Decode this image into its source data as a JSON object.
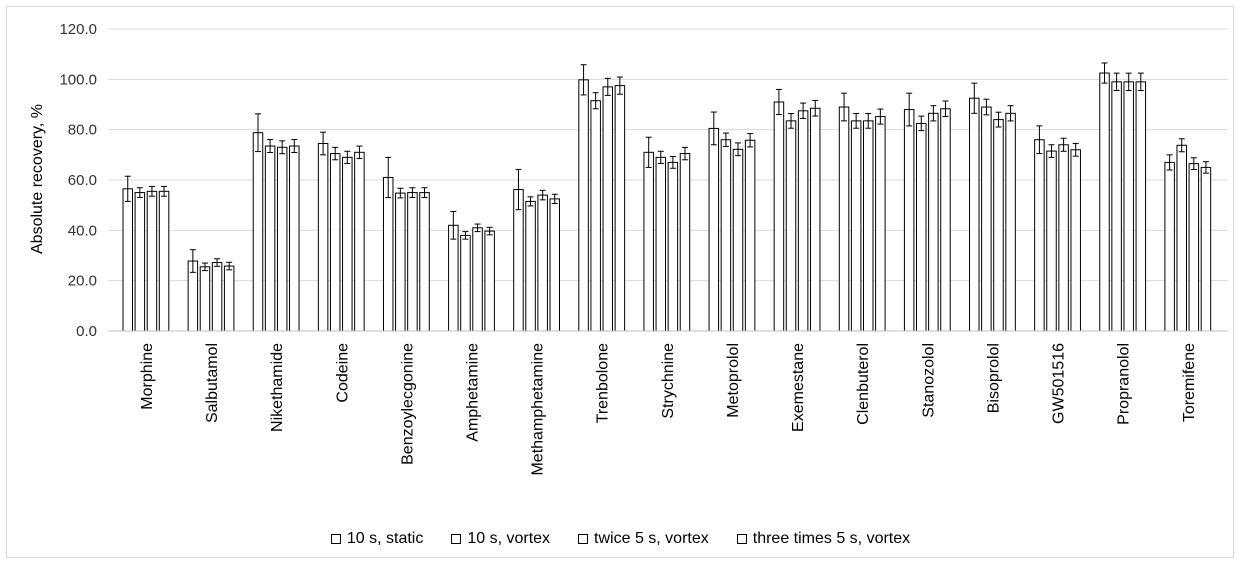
{
  "chart_data": {
    "type": "bar",
    "ylabel": "Absolute recovery, %",
    "xlabel": "",
    "ylim": [
      0,
      120
    ],
    "yticks": [
      "0.0",
      "20.0",
      "40.0",
      "60.0",
      "80.0",
      "100.0",
      "120.0"
    ],
    "grid": true,
    "legend_position": "bottom",
    "bar_fill": "#ffffff",
    "bar_stroke": "#000000",
    "grid_color": "#d9d9d9",
    "categories": [
      "Morphine",
      "Salbutamol",
      "Nikethamide",
      "Codeine",
      "Benzoylecgonine",
      "Amphetamine",
      "Methamphetamine",
      "Trenbolone",
      "Strychnine",
      "Metoprolol",
      "Exemestane",
      "Clenbuterol",
      "Stanozolol",
      "Bisoprolol",
      "GW501516",
      "Propranolol",
      "Toremifene"
    ],
    "series": [
      {
        "name": "10 s, static",
        "values": [
          56.5,
          27.8,
          78.8,
          74.5,
          61.0,
          42.0,
          56.2,
          99.8,
          71.0,
          80.5,
          91.0,
          89.0,
          88.0,
          92.5,
          76.0,
          102.5,
          67.0
        ],
        "errors": [
          5.0,
          4.5,
          7.5,
          4.5,
          8.0,
          5.5,
          8.0,
          6.0,
          6.0,
          6.5,
          5.0,
          5.5,
          6.5,
          6.0,
          5.5,
          4.0,
          3.0
        ]
      },
      {
        "name": "10 s, vortex",
        "values": [
          55.0,
          25.5,
          73.5,
          70.5,
          54.8,
          38.0,
          51.5,
          91.5,
          69.0,
          76.0,
          83.5,
          83.5,
          82.5,
          89.0,
          71.5,
          99.0,
          73.8
        ]
      },
      {
        "name": "twice 5 s, vortex",
        "values": [
          55.5,
          27.2,
          73.0,
          69.0,
          55.0,
          41.0,
          54.0,
          97.0,
          67.0,
          72.2,
          87.5,
          83.5,
          86.5,
          84.0,
          74.0,
          99.0,
          66.5
        ]
      },
      {
        "name": "three times 5 s, vortex",
        "values": [
          55.5,
          25.8,
          73.5,
          71.0,
          55.0,
          39.7,
          52.5,
          97.5,
          70.5,
          75.8,
          88.5,
          85.2,
          88.3,
          86.5,
          72.0,
          99.0,
          65.0
        ]
      }
    ]
  }
}
